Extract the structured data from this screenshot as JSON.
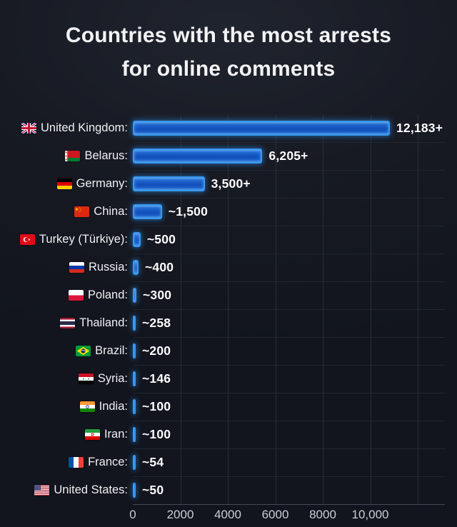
{
  "title": {
    "line1": "Countries with the most arrests",
    "line2": "for online comments"
  },
  "chart_data": {
    "type": "bar",
    "orientation": "horizontal",
    "title": "Countries with the most arrests for online comments",
    "categories": [
      "United Kingdom",
      "Belarus",
      "Germany",
      "China",
      "Turkey (Türkiye)",
      "Russia",
      "Poland",
      "Thailand",
      "Brazil",
      "Syria",
      "India",
      "Iran",
      "France",
      "United States"
    ],
    "values": [
      12183,
      6205,
      3500,
      1500,
      500,
      400,
      300,
      258,
      200,
      146,
      100,
      100,
      54,
      50
    ],
    "value_labels": [
      "12,183+",
      "6,205+",
      "3,500+",
      "~1,500",
      "~500",
      "~400",
      "~300",
      "~258",
      "~200",
      "~146",
      "~100",
      "~100",
      "~54",
      "~50"
    ],
    "rows": [
      {
        "country": "United Kingdom",
        "label": "United Kingdom:",
        "flag": "gb",
        "value": 12183,
        "value_label": "12,183+"
      },
      {
        "country": "Belarus",
        "label": "Belarus:",
        "flag": "by",
        "value": 6205,
        "value_label": "6,205+"
      },
      {
        "country": "Germany",
        "label": "Germany:",
        "flag": "de",
        "value": 3500,
        "value_label": "3,500+"
      },
      {
        "country": "China",
        "label": "China:",
        "flag": "cn",
        "value": 1500,
        "value_label": "~1,500"
      },
      {
        "country": "Turkey (Türkiye)",
        "label": "Turkey (Türkiye):",
        "flag": "tr",
        "value": 500,
        "value_label": "~500"
      },
      {
        "country": "Russia",
        "label": "Russia:",
        "flag": "ru",
        "value": 400,
        "value_label": "~400"
      },
      {
        "country": "Poland",
        "label": "Poland:",
        "flag": "pl",
        "value": 300,
        "value_label": "~300"
      },
      {
        "country": "Thailand",
        "label": "Thailand:",
        "flag": "th",
        "value": 258,
        "value_label": "~258"
      },
      {
        "country": "Brazil",
        "label": "Brazil:",
        "flag": "br",
        "value": 200,
        "value_label": "~200"
      },
      {
        "country": "Syria",
        "label": "Syria:",
        "flag": "sy",
        "value": 146,
        "value_label": "~146"
      },
      {
        "country": "India",
        "label": "India:",
        "flag": "in",
        "value": 100,
        "value_label": "~100"
      },
      {
        "country": "Iran",
        "label": "Iran:",
        "flag": "ir",
        "value": 100,
        "value_label": "~100"
      },
      {
        "country": "France",
        "label": "France:",
        "flag": "fr",
        "value": 54,
        "value_label": "~54"
      },
      {
        "country": "United States",
        "label": "United States:",
        "flag": "us",
        "value": 50,
        "value_label": "~50"
      }
    ],
    "xlim": [
      0,
      13000
    ],
    "x_ticks": [
      0,
      2000,
      4000,
      6000,
      8000,
      10000
    ],
    "x_tick_labels": [
      "0",
      "2000",
      "4000",
      "6000",
      "8000",
      "10,000"
    ],
    "grid": true,
    "legend": false,
    "colors": {
      "background": "#171a23",
      "bar_fill": "#1457be",
      "bar_border": "#3797f0",
      "grid_line": "#2b303b",
      "title_text": "#f2f3f5",
      "label_text": "#eef0f3",
      "axis_text": "#c9ced6"
    }
  }
}
